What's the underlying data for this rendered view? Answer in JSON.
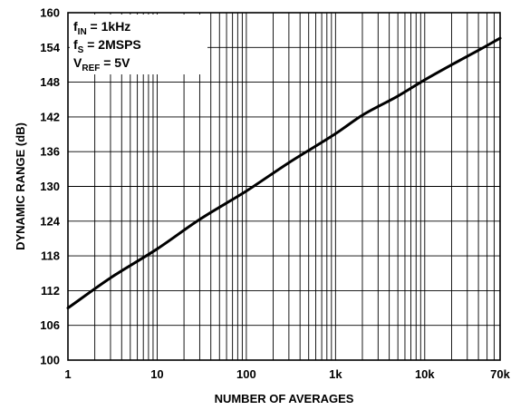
{
  "chart_data": {
    "type": "line",
    "xlabel": "NUMBER OF AVERAGES",
    "ylabel": "DYNAMIC RANGE (dB)",
    "x_scale": "log",
    "xlim": [
      1,
      70000
    ],
    "ylim": [
      100,
      160
    ],
    "grid": true,
    "x_ticks": [
      {
        "value": 1,
        "label": "1"
      },
      {
        "value": 10,
        "label": "10"
      },
      {
        "value": 100,
        "label": "100"
      },
      {
        "value": 1000,
        "label": "1k"
      },
      {
        "value": 10000,
        "label": "10k"
      },
      {
        "value": 70000,
        "label": "70k"
      }
    ],
    "y_ticks": [
      100,
      106,
      112,
      118,
      124,
      130,
      136,
      142,
      148,
      154,
      160
    ],
    "conditions": [
      {
        "main": "f",
        "sub": "IN",
        "rest": " = 1kHz"
      },
      {
        "main": "f",
        "sub": "S",
        "rest": " = 2MSPS"
      },
      {
        "main": "V",
        "sub": "REF",
        "rest": " = 5V"
      }
    ],
    "series": [
      {
        "color": "#000000",
        "x": [
          1,
          3,
          10,
          30,
          100,
          300,
          1000,
          2000,
          5000,
          10000,
          20000,
          40000,
          70000
        ],
        "y": [
          109,
          114.2,
          119.2,
          124.3,
          129.2,
          134.1,
          139.1,
          142.3,
          145.6,
          148.4,
          151,
          153.5,
          155.6
        ]
      }
    ]
  }
}
